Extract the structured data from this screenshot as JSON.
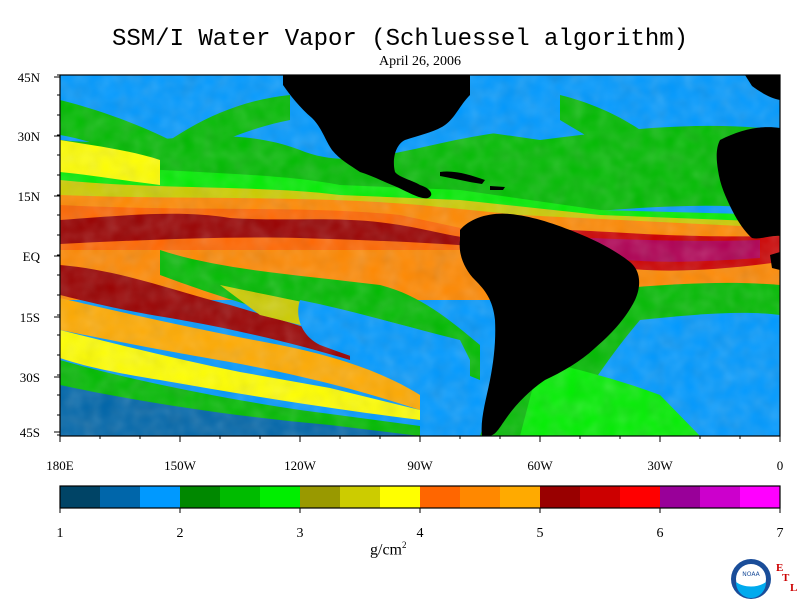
{
  "title": "SSM/I Water Vapor (Schluessel algorithm)",
  "date": "April 26, 2006",
  "units": "g/cm",
  "units_sup": "2",
  "lat_labels": [
    "45N",
    "30N",
    "15N",
    "EQ",
    "15S",
    "30S",
    "45S"
  ],
  "lon_labels": [
    "180E",
    "150W",
    "120W",
    "90W",
    "60W",
    "30W",
    "0"
  ],
  "colorbar": {
    "ticks": [
      "1",
      "2",
      "3",
      "4",
      "5",
      "6",
      "7"
    ],
    "colors": [
      "#004466",
      "#0066aa",
      "#0099ff",
      "#008800",
      "#00bb00",
      "#00ee00",
      "#999900",
      "#cccc00",
      "#ffff00",
      "#ff6600",
      "#ff8800",
      "#ffaa00",
      "#990000",
      "#cc0000",
      "#ff0000",
      "#990099",
      "#cc00cc",
      "#ff00ff"
    ]
  },
  "land_color": "#000000",
  "logo": {
    "text": "NOAA",
    "letters": [
      "E",
      "T",
      "L"
    ]
  }
}
